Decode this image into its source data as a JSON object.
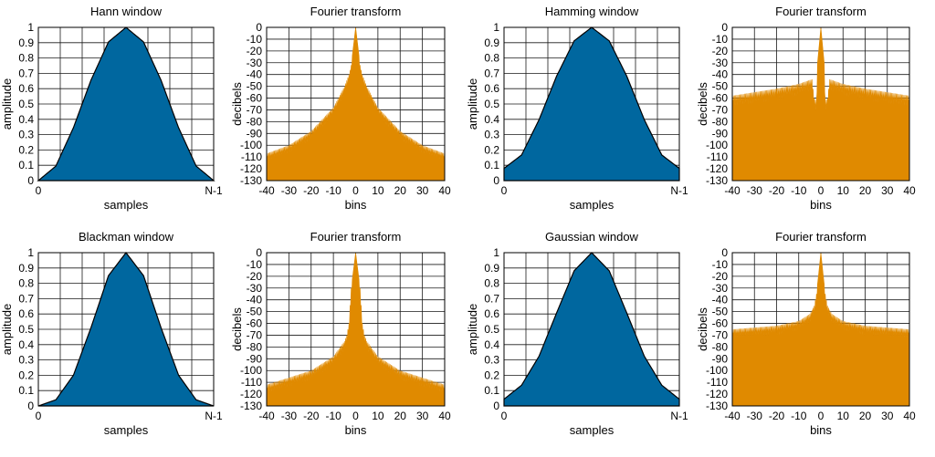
{
  "chart_data": [
    {
      "type": "area",
      "kind": "window",
      "title": "Hann window",
      "xlabel": "samples",
      "ylabel": "amplitude",
      "x_tick_labels": [
        "0",
        "N-1"
      ],
      "ylim": [
        0,
        1
      ],
      "y_ticks": [
        0,
        0.1,
        0.2,
        0.3,
        0.4,
        0.5,
        0.6,
        0.7,
        0.8,
        0.9,
        1
      ],
      "y_tick_labels": [
        "0",
        "0.1",
        "0.2",
        "0.3",
        "0.4",
        "0.5",
        "0.6",
        "0.7",
        "0.8",
        "0.9",
        "1"
      ],
      "n": [
        0,
        0.1,
        0.2,
        0.3,
        0.4,
        0.5,
        0.6,
        0.7,
        0.8,
        0.9,
        1
      ],
      "values": [
        0,
        0.095,
        0.345,
        0.655,
        0.905,
        1,
        0.905,
        0.655,
        0.345,
        0.095,
        0
      ],
      "color": "#00679f"
    },
    {
      "type": "area",
      "kind": "spectrum",
      "title": "Fourier transform",
      "xlabel": "bins",
      "ylabel": "decibels",
      "xlim": [
        -40,
        40
      ],
      "x_ticks": [
        -40,
        -30,
        -20,
        -10,
        0,
        10,
        20,
        30,
        40
      ],
      "ylim": [
        -130,
        0
      ],
      "y_ticks": [
        0,
        -10,
        -20,
        -30,
        -40,
        -50,
        -60,
        -70,
        -80,
        -90,
        -100,
        -110,
        -120,
        -130
      ],
      "envelope_bins": [
        0,
        2,
        3,
        5,
        10,
        20,
        30,
        40
      ],
      "envelope_db": [
        0,
        -32,
        -40,
        -50,
        -68,
        -88,
        -100,
        -107
      ],
      "sidelobe_ripple_db": 7,
      "color": "#e08a00"
    },
    {
      "type": "area",
      "kind": "window",
      "title": "Hamming window",
      "xlabel": "samples",
      "ylabel": "amplitude",
      "x_tick_labels": [
        "0",
        "N-1"
      ],
      "ylim": [
        0,
        1
      ],
      "y_ticks": [
        0,
        0.1,
        0.2,
        0.3,
        0.4,
        0.5,
        0.6,
        0.7,
        0.8,
        0.9,
        1
      ],
      "y_tick_labels": [
        "0",
        "0.1",
        "0.2",
        "0.3",
        "0.4",
        "0.5",
        "0.6",
        "0.7",
        "0.8",
        "0.9",
        "1"
      ],
      "n": [
        0,
        0.1,
        0.2,
        0.3,
        0.4,
        0.5,
        0.6,
        0.7,
        0.8,
        0.9,
        1
      ],
      "values": [
        0.08,
        0.167,
        0.398,
        0.682,
        0.912,
        1,
        0.912,
        0.682,
        0.398,
        0.167,
        0.08
      ],
      "color": "#00679f"
    },
    {
      "type": "area",
      "kind": "spectrum",
      "title": "Fourier transform",
      "xlabel": "bins",
      "ylabel": "decibels",
      "xlim": [
        -40,
        40
      ],
      "x_ticks": [
        -40,
        -30,
        -20,
        -10,
        0,
        10,
        20,
        30,
        40
      ],
      "ylim": [
        -130,
        0
      ],
      "y_ticks": [
        0,
        -10,
        -20,
        -30,
        -40,
        -50,
        -60,
        -70,
        -80,
        -90,
        -100,
        -110,
        -120,
        -130
      ],
      "envelope_bins": [
        0,
        1.5,
        2,
        3,
        4,
        10,
        20,
        40
      ],
      "envelope_db": [
        0,
        -30,
        -62,
        -60,
        -44,
        -48,
        -52,
        -58
      ],
      "sidelobe_ripple_db": 10,
      "color": "#e08a00"
    },
    {
      "type": "area",
      "kind": "window",
      "title": "Blackman window",
      "xlabel": "samples",
      "ylabel": "amplitude",
      "x_tick_labels": [
        "0",
        "N-1"
      ],
      "ylim": [
        0,
        1
      ],
      "y_ticks": [
        0,
        0.1,
        0.2,
        0.3,
        0.4,
        0.5,
        0.6,
        0.7,
        0.8,
        0.9,
        1
      ],
      "y_tick_labels": [
        "0",
        "0.1",
        "0.2",
        "0.3",
        "0.4",
        "0.5",
        "0.6",
        "0.7",
        "0.8",
        "0.9",
        "1"
      ],
      "n": [
        0,
        0.1,
        0.2,
        0.3,
        0.4,
        0.5,
        0.6,
        0.7,
        0.8,
        0.9,
        1
      ],
      "values": [
        0,
        0.04,
        0.2,
        0.51,
        0.85,
        1,
        0.85,
        0.51,
        0.2,
        0.04,
        0
      ],
      "color": "#00679f"
    },
    {
      "type": "area",
      "kind": "spectrum",
      "title": "Fourier transform",
      "xlabel": "bins",
      "ylabel": "decibels",
      "xlim": [
        -40,
        40
      ],
      "x_ticks": [
        -40,
        -30,
        -20,
        -10,
        0,
        10,
        20,
        30,
        40
      ],
      "ylim": [
        -130,
        0
      ],
      "y_ticks": [
        0,
        -10,
        -20,
        -30,
        -40,
        -50,
        -60,
        -70,
        -80,
        -90,
        -100,
        -110,
        -120,
        -130
      ],
      "envelope_bins": [
        0,
        2,
        3,
        4,
        5,
        10,
        20,
        40
      ],
      "envelope_db": [
        0,
        -30,
        -60,
        -70,
        -75,
        -88,
        -100,
        -112
      ],
      "sidelobe_ripple_db": 8,
      "color": "#e08a00"
    },
    {
      "type": "area",
      "kind": "window",
      "title": "Gaussian window",
      "xlabel": "samples",
      "ylabel": "amplitude",
      "x_tick_labels": [
        "0",
        "N-1"
      ],
      "ylim": [
        0,
        1
      ],
      "y_ticks": [
        0,
        0.1,
        0.2,
        0.3,
        0.4,
        0.5,
        0.6,
        0.7,
        0.8,
        0.9,
        1
      ],
      "y_tick_labels": [
        "0",
        "0.1",
        "0.2",
        "0.3",
        "0.4",
        "0.5",
        "0.6",
        "0.7",
        "0.8",
        "0.9",
        "1"
      ],
      "n": [
        0,
        0.1,
        0.2,
        0.3,
        0.4,
        0.5,
        0.6,
        0.7,
        0.8,
        0.9,
        1
      ],
      "values": [
        0.044,
        0.135,
        0.325,
        0.607,
        0.882,
        1,
        0.882,
        0.607,
        0.325,
        0.135,
        0.044
      ],
      "color": "#00679f"
    },
    {
      "type": "area",
      "kind": "spectrum",
      "title": "Fourier transform",
      "xlabel": "bins",
      "ylabel": "decibels",
      "xlim": [
        -40,
        40
      ],
      "x_ticks": [
        -40,
        -30,
        -20,
        -10,
        0,
        10,
        20,
        30,
        40
      ],
      "ylim": [
        -130,
        0
      ],
      "y_ticks": [
        0,
        -10,
        -20,
        -30,
        -40,
        -50,
        -60,
        -70,
        -80,
        -90,
        -100,
        -110,
        -120,
        -130
      ],
      "envelope_bins": [
        0,
        1,
        2,
        3,
        5,
        10,
        20,
        40
      ],
      "envelope_db": [
        0,
        -18,
        -35,
        -45,
        -52,
        -58,
        -62,
        -65
      ],
      "sidelobe_ripple_db": 8,
      "color": "#e08a00"
    }
  ]
}
